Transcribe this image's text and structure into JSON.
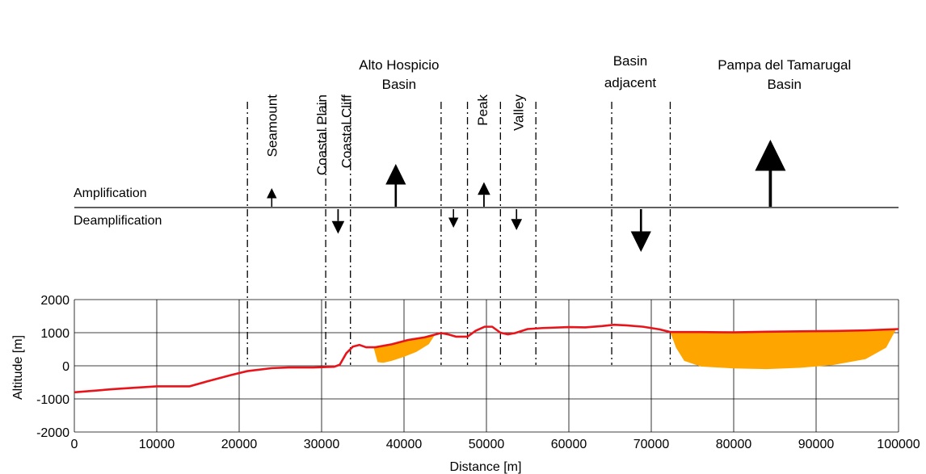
{
  "zones": [
    {
      "name": "seamount",
      "label": "Seamount",
      "orientation": "vertical",
      "effect": "amplification",
      "strength": 1
    },
    {
      "name": "coastal-plain",
      "label": "Coastal Plain",
      "orientation": "vertical",
      "effect": "deamplification",
      "strength": 1.5
    },
    {
      "name": "coastal-cliff",
      "label": "Coastal Cliff",
      "orientation": "vertical",
      "effect": null,
      "strength": 0
    },
    {
      "name": "alto-hospicio-basin",
      "label": "Alto Hospicio\nBasin",
      "orientation": "horizontal",
      "effect": "amplification",
      "strength": 3
    },
    {
      "name": "alto-hospicio-edge",
      "label": "",
      "orientation": "none",
      "effect": "deamplification",
      "strength": 1
    },
    {
      "name": "peak",
      "label": "Peak",
      "orientation": "vertical",
      "effect": "amplification",
      "strength": 1.5
    },
    {
      "name": "valley",
      "label": "Valley",
      "orientation": "vertical",
      "effect": "deamplification",
      "strength": 1.2
    },
    {
      "name": "basin-adjacent",
      "label": "Basin\nadjacent",
      "orientation": "horizontal",
      "effect": "deamplification",
      "strength": 3
    },
    {
      "name": "pampa-del-tamarugal-basin",
      "label": "Pampa del Tamarugal\nBasin",
      "orientation": "horizontal",
      "effect": "amplification",
      "strength": 5
    }
  ],
  "boundaries_m": [
    21000,
    30500,
    33500,
    44500,
    47700,
    51700,
    56000,
    65200,
    72300
  ],
  "effect_axis": {
    "amplification_label": "Amplification",
    "deamplification_label": "Deamplification"
  },
  "chart_data": {
    "type": "line",
    "xlabel": "Distance [m]",
    "ylabel": "Altitude [m]",
    "xlim": [
      0,
      100000
    ],
    "ylim": [
      -2000,
      2000
    ],
    "xticks": [
      0,
      10000,
      20000,
      30000,
      40000,
      50000,
      60000,
      70000,
      80000,
      90000,
      100000
    ],
    "yticks": [
      -2000,
      -1000,
      0,
      1000,
      2000
    ],
    "grid": true,
    "series": [
      {
        "kind": "topography",
        "color": "#e8141b",
        "x": [
          0,
          5000,
          10000,
          14000,
          16000,
          19000,
          21000,
          24000,
          26000,
          29000,
          31500,
          32200,
          33000,
          33800,
          34600,
          35400,
          36500,
          38500,
          40500,
          42500,
          44500,
          45500,
          46300,
          47700,
          48700,
          49800,
          50700,
          51700,
          52600,
          53500,
          55000,
          56800,
          60000,
          62000,
          64000,
          65500,
          67000,
          69000,
          71000,
          72300,
          76000,
          80000,
          84000,
          88000,
          92000,
          96000,
          100000
        ],
        "y": [
          -800,
          -700,
          -620,
          -620,
          -480,
          -280,
          -160,
          -70,
          -50,
          -50,
          -30,
          30,
          380,
          580,
          630,
          560,
          560,
          650,
          780,
          860,
          990,
          940,
          880,
          880,
          1060,
          1180,
          1180,
          1000,
          950,
          990,
          1110,
          1140,
          1170,
          1160,
          1200,
          1240,
          1220,
          1180,
          1100,
          1020,
          1020,
          1010,
          1030,
          1040,
          1050,
          1070,
          1110
        ]
      }
    ],
    "basins": [
      {
        "name": "alto-hospicio-basin-fill",
        "color": "#ffa500",
        "x": [
          36300,
          38500,
          40500,
          42500,
          43800,
          43000,
          41500,
          40000,
          38500,
          37500,
          36800
        ],
        "y": [
          560,
          650,
          780,
          860,
          950,
          650,
          420,
          270,
          150,
          90,
          110
        ]
      },
      {
        "name": "pampa-del-tamarugal-basin-fill",
        "color": "#ffa500",
        "x": [
          72300,
          76000,
          80000,
          84000,
          88000,
          92000,
          96000,
          99700,
          98500,
          96000,
          92000,
          88000,
          84000,
          80000,
          76000,
          74000,
          73000
        ],
        "y": [
          1020,
          1020,
          1010,
          1030,
          1040,
          1050,
          1070,
          1100,
          550,
          200,
          20,
          -60,
          -100,
          -80,
          -20,
          150,
          550
        ]
      }
    ]
  }
}
